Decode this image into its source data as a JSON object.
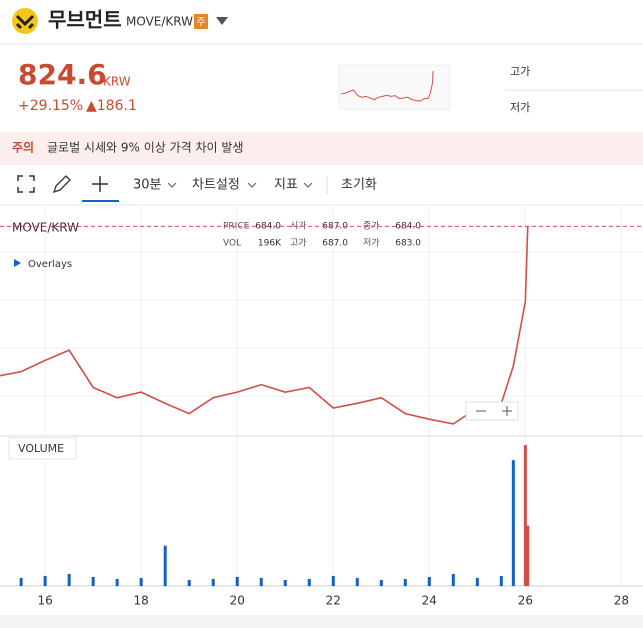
{
  "header": {
    "title": "무브먼트",
    "pair": "MOVE/KRW",
    "badge": "주"
  },
  "price": {
    "value": "824.6",
    "unit": "KRW",
    "change_rate": "+29.15%",
    "change": "▲186.1"
  },
  "stats": {
    "high_label": "고가",
    "low_label": "저가"
  },
  "notice": {
    "label": "주의",
    "text": "글로벌 시세와 9% 이상 가격 차이 발생"
  },
  "toolbar": {
    "interval": "30분",
    "settings": "차트설정",
    "indicators": "지표",
    "reset": "초기화"
  },
  "chart_data": {
    "type": "line",
    "title": "MOVE/KRW",
    "overlays": "Overlays",
    "volume_label": "VOLUME",
    "info": [
      {
        "label": "PRICE",
        "value": "684.0"
      },
      {
        "label": "시가",
        "value": "687.0"
      },
      {
        "label": "종가",
        "value": "684.0"
      },
      {
        "label": "VOL",
        "value": "196K"
      },
      {
        "label": "고가",
        "value": "687.0"
      },
      {
        "label": "저가",
        "value": "683.0"
      }
    ],
    "x": [
      15.0,
      15.5,
      16.0,
      16.5,
      17.0,
      17.5,
      18.0,
      18.5,
      19.0,
      19.5,
      20.0,
      20.5,
      21.0,
      21.5,
      22.0,
      22.5,
      23.0,
      23.5,
      24.0,
      24.5,
      25.0,
      25.5,
      25.75,
      26.0,
      26.05
    ],
    "values": [
      664,
      669,
      681,
      692,
      652,
      641,
      647,
      635,
      624,
      641,
      647,
      655,
      647,
      652,
      630,
      635,
      641,
      624,
      618,
      613,
      630,
      635,
      675,
      744,
      824.6
    ],
    "volume": [
      6,
      8,
      10,
      12,
      9,
      7,
      8,
      40,
      6,
      7,
      9,
      8,
      6,
      7,
      10,
      8,
      6,
      7,
      9,
      12,
      8,
      10,
      125,
      140,
      60
    ],
    "color": "#d24f45",
    "volume_color": "#1261c4",
    "xlim": [
      15.06,
      28.45
    ],
    "xticks": [
      16,
      18,
      20,
      22,
      24,
      26,
      28
    ],
    "ylim": [
      600,
      840
    ]
  }
}
